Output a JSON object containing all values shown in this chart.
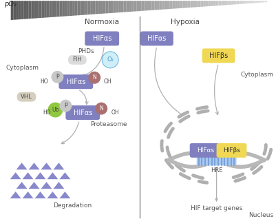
{
  "fig_width": 4.01,
  "fig_height": 3.18,
  "dpi": 100,
  "bg_color": "#ffffff",
  "hif_alpha_color": "#8080c0",
  "hif_beta_color": "#f0d855",
  "p_circle_color": "#c8c8c8",
  "n_circle_color": "#aa7070",
  "ub_circle_color": "#90c840",
  "vhl_color": "#d5cfc0",
  "fih_color": "#dcdcdc",
  "o2_color": "#d0eef8",
  "o2_border": "#70b8e0",
  "triangle_color": "#8888cc",
  "arrow_color": "#b0b0b0",
  "dna_outer_color": "#b8b8b8",
  "dna_middle_color": "#a8c8f0",
  "dna_stripe_color": "#6090d0",
  "divider_color": "#888888",
  "nuc_dash_color": "#b0b0b0",
  "label_po2": "pO₂",
  "label_normoxia": "Normoxia",
  "label_hypoxia": "Hypoxia",
  "label_cytoplasm_l": "Cytoplasm",
  "label_cytoplasm_r": "Cytoplasm",
  "label_nucleus": "Nucleus",
  "label_phds": "PHDs",
  "label_fih": "FIH",
  "label_o2": "O₂",
  "label_vhl": "VHL",
  "label_ub": "Ub",
  "label_p": "P",
  "label_n": "N",
  "label_ho": "HO",
  "label_oh": "OH",
  "label_proteasome": "Proteasome",
  "label_degradation": "Degradation",
  "label_hre": "HRE",
  "label_hif_target": "HIF target genes",
  "label_hifas": "HIFαs",
  "label_hifbs": "HIFβs"
}
